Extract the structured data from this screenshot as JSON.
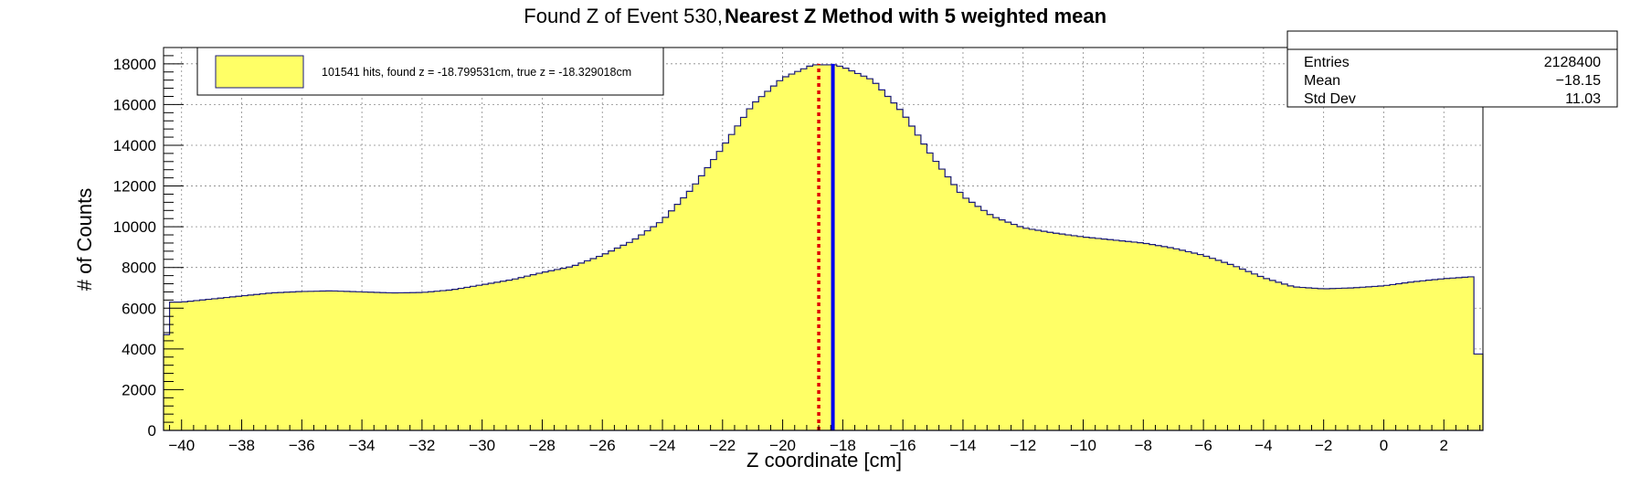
{
  "chart_data": {
    "type": "histogram",
    "title_part1": "Found Z of Event 530,",
    "title_part2": "Nearest Z Method with 5 weighted mean",
    "xlabel": "Z coordinate [cm]",
    "ylabel": "# of Counts",
    "xlim": [
      -40.6,
      3.3
    ],
    "ylim": [
      0,
      18800
    ],
    "grid": true,
    "x_ticks": [
      -40,
      -38,
      -36,
      -34,
      -32,
      -30,
      -28,
      -26,
      -24,
      -22,
      -20,
      -18,
      -16,
      -14,
      -12,
      -10,
      -8,
      -6,
      -4,
      -2,
      0,
      2
    ],
    "y_ticks": [
      0,
      2000,
      4000,
      6000,
      8000,
      10000,
      12000,
      14000,
      16000,
      18000
    ],
    "fill_color": "#ffff66",
    "line_color": "#1a1a7a",
    "histogram_profile": [
      [
        -40.6,
        3100
      ],
      [
        -40.4,
        6300
      ],
      [
        -40.0,
        6300
      ],
      [
        -39.0,
        6450
      ],
      [
        -38.0,
        6600
      ],
      [
        -37.0,
        6750
      ],
      [
        -36.0,
        6820
      ],
      [
        -35.0,
        6850
      ],
      [
        -34.0,
        6800
      ],
      [
        -33.0,
        6750
      ],
      [
        -32.0,
        6770
      ],
      [
        -31.0,
        6900
      ],
      [
        -30.0,
        7150
      ],
      [
        -29.0,
        7400
      ],
      [
        -28.0,
        7750
      ],
      [
        -27.0,
        8050
      ],
      [
        -26.0,
        8600
      ],
      [
        -25.0,
        9300
      ],
      [
        -24.0,
        10300
      ],
      [
        -23.0,
        11900
      ],
      [
        -22.0,
        13900
      ],
      [
        -21.0,
        16000
      ],
      [
        -20.0,
        17300
      ],
      [
        -19.0,
        17950
      ],
      [
        -18.3,
        17950
      ],
      [
        -18.0,
        17850
      ],
      [
        -17.0,
        17200
      ],
      [
        -16.0,
        15600
      ],
      [
        -15.0,
        13400
      ],
      [
        -14.0,
        11500
      ],
      [
        -13.0,
        10500
      ],
      [
        -12.0,
        9950
      ],
      [
        -11.0,
        9700
      ],
      [
        -10.0,
        9500
      ],
      [
        -9.0,
        9350
      ],
      [
        -8.0,
        9200
      ],
      [
        -7.0,
        8950
      ],
      [
        -6.0,
        8600
      ],
      [
        -5.0,
        8100
      ],
      [
        -4.0,
        7500
      ],
      [
        -3.0,
        7050
      ],
      [
        -2.0,
        6950
      ],
      [
        -1.0,
        7000
      ],
      [
        0.0,
        7100
      ],
      [
        1.0,
        7300
      ],
      [
        2.0,
        7450
      ],
      [
        3.0,
        7550
      ],
      [
        3.05,
        3750
      ],
      [
        3.3,
        3750
      ]
    ],
    "bin_width": 0.2,
    "found_z": -18.799531,
    "true_z": -18.329018,
    "found_z_color": "#e00000",
    "true_z_color": "#0000ee",
    "legend": {
      "label": "101541 hits, found z = -18.799531cm, true z = -18.329018cm",
      "position": "top-left"
    },
    "stats": {
      "entries_label": "Entries",
      "entries_value": "2128400",
      "mean_label": "Mean",
      "mean_value": "−18.15",
      "std_label": "Std Dev",
      "std_value": "11.03"
    }
  }
}
